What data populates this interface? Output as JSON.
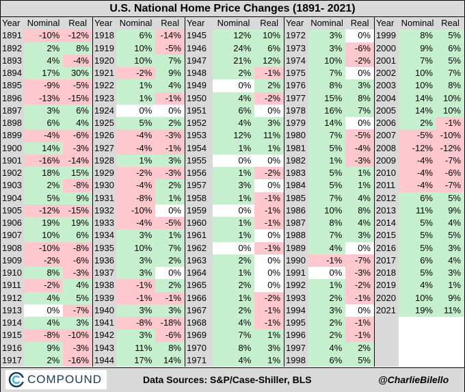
{
  "title": "U.S. National Home Price Changes (1891- 2021)",
  "headers": {
    "year": "Year",
    "nominal": "Nominal",
    "real": "Real"
  },
  "groups": [
    {
      "rows": [
        [
          "1891",
          "-10%",
          "-12%"
        ],
        [
          "1892",
          "2%",
          "8%"
        ],
        [
          "1893",
          "4%",
          "-4%"
        ],
        [
          "1894",
          "17%",
          "30%"
        ],
        [
          "1895",
          "-9%",
          "-5%"
        ],
        [
          "1896",
          "-13%",
          "-15%"
        ],
        [
          "1897",
          "3%",
          "6%"
        ],
        [
          "1898",
          "6%",
          "4%"
        ],
        [
          "1899",
          "-4%",
          "-6%"
        ],
        [
          "1900",
          "14%",
          "-3%"
        ],
        [
          "1901",
          "-16%",
          "-14%"
        ],
        [
          "1902",
          "18%",
          "15%"
        ],
        [
          "1903",
          "2%",
          "-8%"
        ],
        [
          "1904",
          "5%",
          "9%"
        ],
        [
          "1905",
          "-12%",
          "-15%"
        ],
        [
          "1906",
          "19%",
          "19%"
        ],
        [
          "1907",
          "10%",
          "6%"
        ],
        [
          "1908",
          "-10%",
          "-8%"
        ],
        [
          "1909",
          "-2%",
          "-6%"
        ],
        [
          "1910",
          "8%",
          "-3%"
        ],
        [
          "1911",
          "-2%",
          "4%"
        ],
        [
          "1912",
          "4%",
          "5%"
        ],
        [
          "1913",
          "0%",
          "-7%"
        ],
        [
          "1914",
          "4%",
          "3%"
        ],
        [
          "1915",
          "-8%",
          "-10%"
        ],
        [
          "1916",
          "9%",
          "-3%"
        ],
        [
          "1917",
          "2%",
          "-16%"
        ]
      ]
    },
    {
      "rows": [
        [
          "1918",
          "6%",
          "-14%"
        ],
        [
          "1919",
          "10%",
          "-5%"
        ],
        [
          "1920",
          "10%",
          "7%"
        ],
        [
          "1921",
          "-2%",
          "9%"
        ],
        [
          "1922",
          "1%",
          "4%"
        ],
        [
          "1923",
          "1%",
          "-1%"
        ],
        [
          "1924",
          "0%",
          "0%"
        ],
        [
          "1925",
          "5%",
          "2%"
        ],
        [
          "1926",
          "-4%",
          "-3%"
        ],
        [
          "1927",
          "-4%",
          "-1%"
        ],
        [
          "1928",
          "1%",
          "3%"
        ],
        [
          "1929",
          "-2%",
          "-3%"
        ],
        [
          "1930",
          "-4%",
          "2%"
        ],
        [
          "1931",
          "-8%",
          "1%"
        ],
        [
          "1932",
          "-10%",
          "0%"
        ],
        [
          "1933",
          "-4%",
          "-5%"
        ],
        [
          "1934",
          "3%",
          "1%"
        ],
        [
          "1935",
          "10%",
          "7%"
        ],
        [
          "1936",
          "3%",
          "2%"
        ],
        [
          "1937",
          "3%",
          "0%"
        ],
        [
          "1938",
          "-1%",
          "2%"
        ],
        [
          "1939",
          "-1%",
          "-1%"
        ],
        [
          "1940",
          "3%",
          "3%"
        ],
        [
          "1941",
          "-8%",
          "-18%"
        ],
        [
          "1942",
          "3%",
          "-6%"
        ],
        [
          "1943",
          "11%",
          "8%"
        ],
        [
          "1944",
          "17%",
          "14%"
        ]
      ]
    },
    {
      "rows": [
        [
          "1945",
          "12%",
          "10%"
        ],
        [
          "1946",
          "24%",
          "6%"
        ],
        [
          "1947",
          "21%",
          "12%"
        ],
        [
          "1948",
          "2%",
          "-1%"
        ],
        [
          "1949",
          "0%",
          "2%"
        ],
        [
          "1950",
          "4%",
          "-2%"
        ],
        [
          "1951",
          "6%",
          "0%"
        ],
        [
          "1952",
          "4%",
          "3%"
        ],
        [
          "1953",
          "12%",
          "11%"
        ],
        [
          "1954",
          "1%",
          "1%"
        ],
        [
          "1955",
          "0%",
          "0%"
        ],
        [
          "1956",
          "1%",
          "-2%"
        ],
        [
          "1957",
          "3%",
          "0%"
        ],
        [
          "1958",
          "1%",
          "-1%"
        ],
        [
          "1959",
          "0%",
          "-1%"
        ],
        [
          "1960",
          "1%",
          "-1%"
        ],
        [
          "1961",
          "1%",
          "0%"
        ],
        [
          "1962",
          "0%",
          "-1%"
        ],
        [
          "1963",
          "2%",
          "0%"
        ],
        [
          "1964",
          "1%",
          "0%"
        ],
        [
          "1965",
          "2%",
          "0%"
        ],
        [
          "1966",
          "1%",
          "-2%"
        ],
        [
          "1967",
          "2%",
          "-1%"
        ],
        [
          "1968",
          "4%",
          "-1%"
        ],
        [
          "1969",
          "7%",
          "1%"
        ],
        [
          "1970",
          "8%",
          "3%"
        ],
        [
          "1971",
          "4%",
          "1%"
        ]
      ]
    },
    {
      "rows": [
        [
          "1972",
          "3%",
          "0%"
        ],
        [
          "1973",
          "3%",
          "-6%"
        ],
        [
          "1974",
          "10%",
          "-2%"
        ],
        [
          "1975",
          "7%",
          "0%"
        ],
        [
          "1976",
          "8%",
          "3%"
        ],
        [
          "1977",
          "15%",
          "8%"
        ],
        [
          "1978",
          "16%",
          "7%"
        ],
        [
          "1979",
          "14%",
          "0%"
        ],
        [
          "1980",
          "7%",
          "-5%"
        ],
        [
          "1981",
          "5%",
          "-4%"
        ],
        [
          "1982",
          "1%",
          "-3%"
        ],
        [
          "1983",
          "5%",
          "1%"
        ],
        [
          "1984",
          "5%",
          "1%"
        ],
        [
          "1985",
          "7%",
          "4%"
        ],
        [
          "1986",
          "10%",
          "8%"
        ],
        [
          "1987",
          "8%",
          "4%"
        ],
        [
          "1988",
          "7%",
          "3%"
        ],
        [
          "1989",
          "4%",
          "0%"
        ],
        [
          "1990",
          "-1%",
          "-7%"
        ],
        [
          "1991",
          "0%",
          "-3%"
        ],
        [
          "1992",
          "1%",
          "-2%"
        ],
        [
          "1993",
          "2%",
          "-1%"
        ],
        [
          "1994",
          "3%",
          "0%"
        ],
        [
          "1995",
          "2%",
          "-1%"
        ],
        [
          "1996",
          "2%",
          "-1%"
        ],
        [
          "1997",
          "4%",
          "2%"
        ],
        [
          "1998",
          "6%",
          "5%"
        ]
      ]
    },
    {
      "rows": [
        [
          "1999",
          "8%",
          "5%"
        ],
        [
          "2000",
          "9%",
          "6%"
        ],
        [
          "2001",
          "7%",
          "5%"
        ],
        [
          "2002",
          "10%",
          "7%"
        ],
        [
          "2003",
          "10%",
          "8%"
        ],
        [
          "2004",
          "14%",
          "10%"
        ],
        [
          "2005",
          "14%",
          "10%"
        ],
        [
          "2006",
          "2%",
          "-1%"
        ],
        [
          "2007",
          "-5%",
          "-10%"
        ],
        [
          "2008",
          "-12%",
          "-12%"
        ],
        [
          "2009",
          "-4%",
          "-7%"
        ],
        [
          "2010",
          "-4%",
          "-6%"
        ],
        [
          "2011",
          "-4%",
          "-7%"
        ],
        [
          "2012",
          "6%",
          "5%"
        ],
        [
          "2013",
          "11%",
          "9%"
        ],
        [
          "2014",
          "5%",
          "4%"
        ],
        [
          "2015",
          "5%",
          "5%"
        ],
        [
          "2016",
          "5%",
          "3%"
        ],
        [
          "2017",
          "6%",
          "4%"
        ],
        [
          "2018",
          "5%",
          "3%"
        ],
        [
          "2019",
          "4%",
          "1%"
        ],
        [
          "2020",
          "10%",
          "9%"
        ],
        [
          "2021",
          "19%",
          "11%"
        ]
      ]
    }
  ],
  "footer": {
    "logo_text": "COMPOUND",
    "sources": "Data Sources: S&P/Case-Shiller, BLS",
    "handle": "@CharlieBilello"
  },
  "colors": {
    "positive": "#c6efce",
    "negative": "#ffc7ce",
    "zero": "#ffffff",
    "year": "#d9d9d9"
  }
}
